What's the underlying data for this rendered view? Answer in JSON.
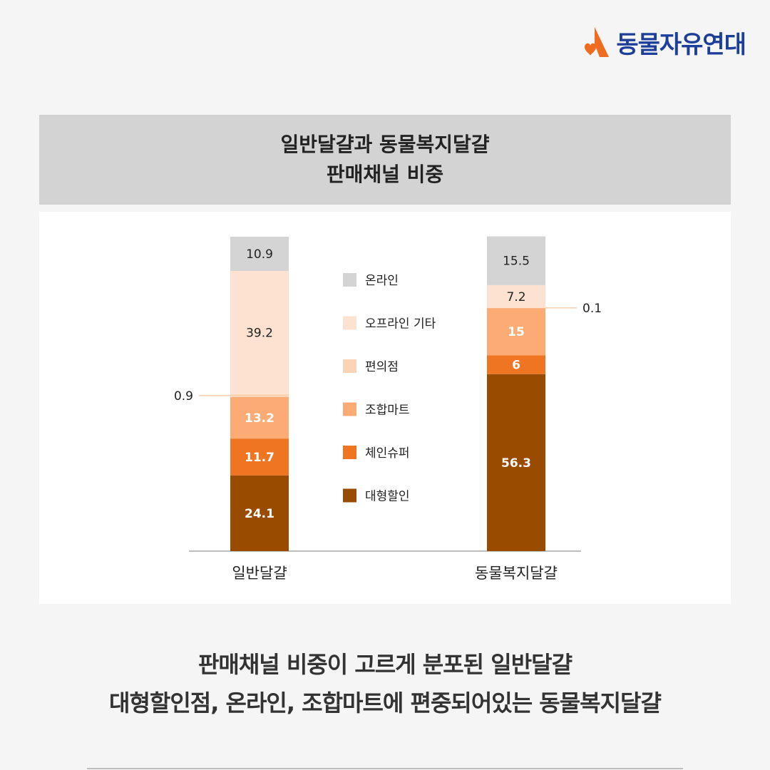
{
  "brand": {
    "name": "동물자유연대",
    "colors": {
      "mark": "#ee6b1f",
      "text": "#1d3f9a"
    }
  },
  "title": {
    "line1": "일반달걀과 동물복지달걀",
    "line2": "판매채널 비중"
  },
  "chart_data": {
    "type": "bar",
    "stacked": true,
    "categories": [
      "일반달걀",
      "동물복지달걀"
    ],
    "ylim": [
      0,
      100
    ],
    "grid": false,
    "legend_placement": "center",
    "series": [
      {
        "name": "대형할인",
        "values": [
          24.1,
          56.3
        ],
        "color": "#994b00",
        "label_color": "#ffffff",
        "label_bold": true
      },
      {
        "name": "체인슈퍼",
        "values": [
          11.7,
          6
        ],
        "color": "#f07522",
        "label_color": "#ffffff",
        "label_bold": true
      },
      {
        "name": "조합마트",
        "values": [
          13.2,
          15
        ],
        "color": "#fdab75",
        "label_color": "#ffffff",
        "label_bold": true
      },
      {
        "name": "편의점",
        "values": [
          0.9,
          0.1
        ],
        "color": "#fbd3b5",
        "label_color": "#222222",
        "label_bold": false,
        "outside": true
      },
      {
        "name": "오프라인 기타",
        "values": [
          39.2,
          7.2
        ],
        "color": "#fde2d1",
        "label_color": "#222222",
        "label_bold": false
      },
      {
        "name": "온라인",
        "values": [
          10.9,
          15.5
        ],
        "color": "#d4d4d4",
        "label_color": "#222222",
        "label_bold": false
      }
    ],
    "legend_order": [
      "온라인",
      "오프라인 기타",
      "편의점",
      "조합마트",
      "체인슈퍼",
      "대형할인"
    ]
  },
  "caption": {
    "line1": "판매채널 비중이 고르게 분포된 일반달걀",
    "line2": "대형할인점, 온라인, 조합마트에 편중되어있는 동물복지달걀"
  }
}
